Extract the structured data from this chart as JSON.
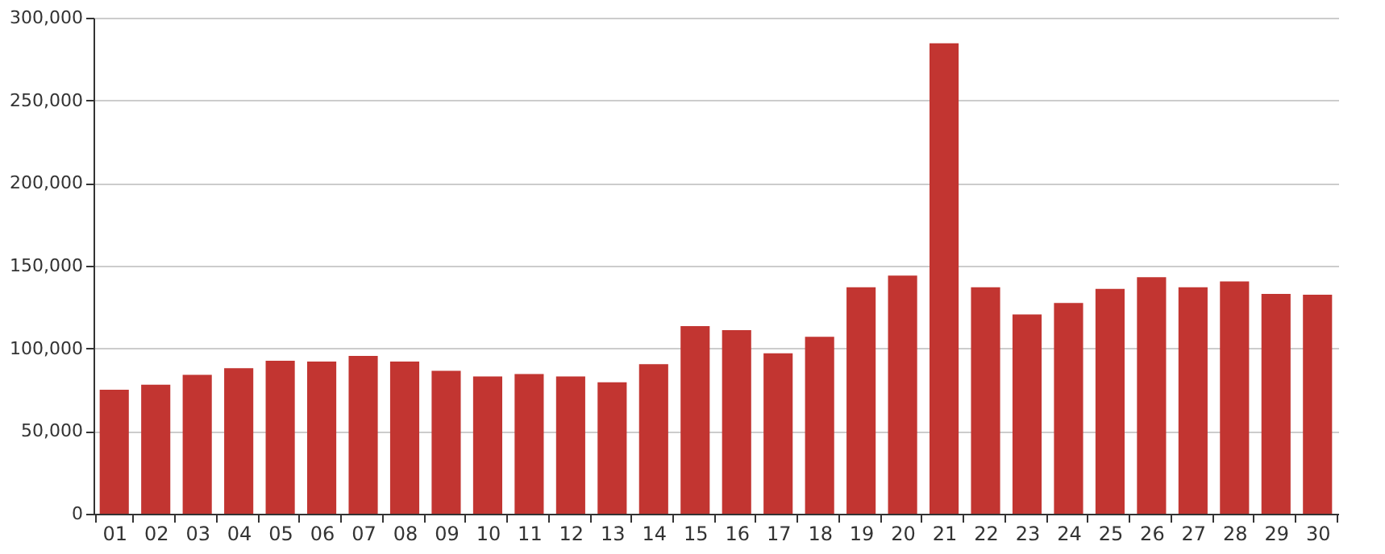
{
  "chart_data": {
    "type": "bar",
    "categories": [
      "01",
      "02",
      "03",
      "04",
      "05",
      "06",
      "07",
      "08",
      "09",
      "10",
      "11",
      "12",
      "13",
      "14",
      "15",
      "16",
      "17",
      "18",
      "19",
      "20",
      "21",
      "22",
      "23",
      "24",
      "25",
      "26",
      "27",
      "28",
      "29",
      "30"
    ],
    "values": [
      75000,
      78000,
      84000,
      88000,
      92500,
      92000,
      95500,
      92000,
      86500,
      83000,
      84500,
      83000,
      79500,
      90500,
      113500,
      111000,
      97000,
      107000,
      137000,
      144000,
      284500,
      137000,
      120500,
      127500,
      136000,
      143000,
      137000,
      140500,
      133000,
      132500
    ],
    "color": "#c23531",
    "ylim": [
      0,
      300000
    ],
    "yticks": [
      {
        "value": 0,
        "label": "0"
      },
      {
        "value": 50000,
        "label": "50,000"
      },
      {
        "value": 100000,
        "label": "100,000"
      },
      {
        "value": 150000,
        "label": "150,000"
      },
      {
        "value": 200000,
        "label": "200,000"
      },
      {
        "value": 250000,
        "label": "250,000"
      },
      {
        "value": 300000,
        "label": "300,000"
      }
    ],
    "grid": "y"
  }
}
